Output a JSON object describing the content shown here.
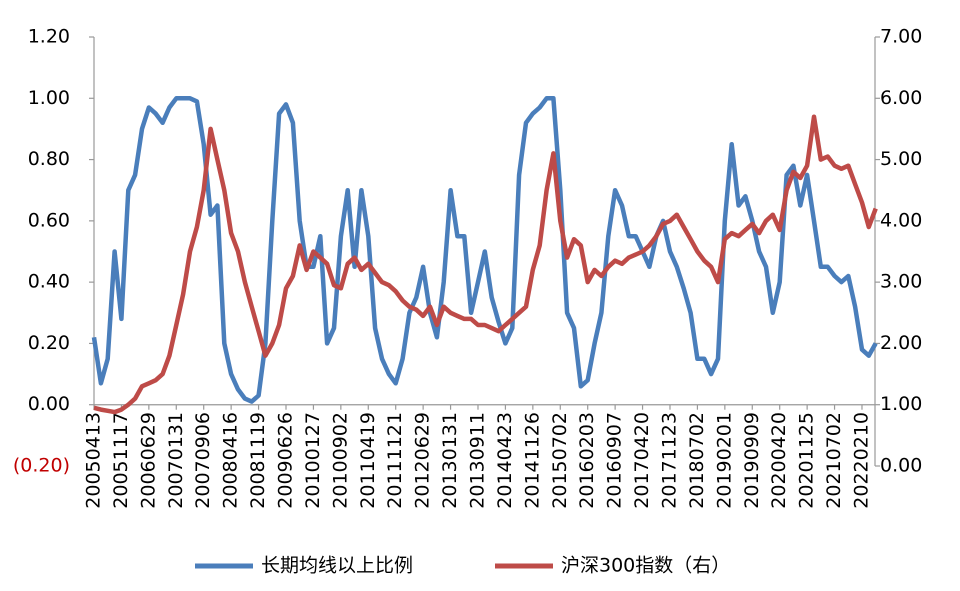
{
  "chart_data": {
    "type": "line",
    "categories": [
      "20050413",
      null,
      null,
      null,
      "20051117",
      null,
      null,
      null,
      "20060629",
      null,
      null,
      null,
      "20070131",
      null,
      null,
      null,
      "20070906",
      null,
      null,
      null,
      "20080416",
      null,
      null,
      null,
      "20081119",
      null,
      null,
      null,
      "20090626",
      null,
      null,
      null,
      "20100127",
      null,
      null,
      null,
      "20100902",
      null,
      null,
      null,
      "20110419",
      null,
      null,
      null,
      "20111121",
      null,
      null,
      null,
      "20120629",
      null,
      null,
      null,
      "20130131",
      null,
      null,
      null,
      "20130911",
      null,
      null,
      null,
      "20140423",
      null,
      null,
      null,
      "20141126",
      null,
      null,
      null,
      "20150702",
      null,
      null,
      null,
      "20160203",
      null,
      null,
      null,
      "20160907",
      null,
      null,
      null,
      "20170420",
      null,
      null,
      null,
      "20171123",
      null,
      null,
      null,
      "20180702",
      null,
      null,
      null,
      "20190201",
      null,
      null,
      null,
      "20190909",
      null,
      null,
      null,
      "20200420",
      null,
      null,
      null,
      "20201125",
      null,
      null,
      null,
      "20210702",
      null,
      null,
      null,
      "20220210",
      null,
      null
    ],
    "series": [
      {
        "name": "长期均线以上比例",
        "color": "#4a7ebb",
        "values": [
          0.22,
          0.07,
          0.15,
          0.5,
          0.28,
          0.7,
          0.75,
          0.9,
          0.97,
          0.95,
          0.92,
          0.97,
          1.0,
          1.0,
          1.0,
          0.99,
          0.85,
          0.62,
          0.65,
          0.2,
          0.1,
          0.05,
          0.02,
          0.01,
          0.03,
          0.2,
          0.6,
          0.95,
          0.98,
          0.92,
          0.6,
          0.45,
          0.45,
          0.55,
          0.2,
          0.25,
          0.55,
          0.7,
          0.45,
          0.7,
          0.55,
          0.25,
          0.15,
          0.1,
          0.07,
          0.15,
          0.3,
          0.35,
          0.45,
          0.3,
          0.22,
          0.4,
          0.7,
          0.55,
          0.55,
          0.3,
          0.4,
          0.5,
          0.35,
          0.27,
          0.2,
          0.25,
          0.75,
          0.92,
          0.95,
          0.97,
          1.0,
          1.0,
          0.7,
          0.3,
          0.25,
          0.06,
          0.08,
          0.2,
          0.3,
          0.55,
          0.7,
          0.65,
          0.55,
          0.55,
          0.5,
          0.45,
          0.55,
          0.6,
          0.5,
          0.45,
          0.38,
          0.3,
          0.15,
          0.15,
          0.1,
          0.15,
          0.6,
          0.85,
          0.65,
          0.68,
          0.6,
          0.5,
          0.45,
          0.3,
          0.4,
          0.75,
          0.78,
          0.65,
          0.75,
          0.6,
          0.45,
          0.45,
          0.42,
          0.4,
          0.42,
          0.32,
          0.18,
          0.16,
          0.2
        ]
      },
      {
        "name": "沪深300指数（右）",
        "color": "#be4b48",
        "axis": "y2",
        "values": [
          0.95,
          0.92,
          0.9,
          0.88,
          0.92,
          1.0,
          1.1,
          1.3,
          1.35,
          1.4,
          1.5,
          1.8,
          2.3,
          2.8,
          3.5,
          3.9,
          4.5,
          5.5,
          5.0,
          4.5,
          3.8,
          3.5,
          3.0,
          2.6,
          2.2,
          1.8,
          2.0,
          2.3,
          2.9,
          3.1,
          3.6,
          3.2,
          3.5,
          3.4,
          3.3,
          2.95,
          2.9,
          3.3,
          3.4,
          3.2,
          3.3,
          3.15,
          3.0,
          2.95,
          2.85,
          2.7,
          2.6,
          2.55,
          2.45,
          2.6,
          2.3,
          2.6,
          2.5,
          2.45,
          2.4,
          2.4,
          2.3,
          2.3,
          2.25,
          2.2,
          2.3,
          2.4,
          2.5,
          2.6,
          3.2,
          3.6,
          4.5,
          5.1,
          4.0,
          3.4,
          3.7,
          3.6,
          3.0,
          3.2,
          3.1,
          3.25,
          3.35,
          3.3,
          3.4,
          3.45,
          3.5,
          3.6,
          3.75,
          3.95,
          4.0,
          4.1,
          3.9,
          3.7,
          3.5,
          3.35,
          3.25,
          3.0,
          3.7,
          3.8,
          3.75,
          3.85,
          3.95,
          3.8,
          4.0,
          4.1,
          3.85,
          4.5,
          4.8,
          4.7,
          4.9,
          5.7,
          5.0,
          5.05,
          4.9,
          4.85,
          4.9,
          4.6,
          4.3,
          3.9,
          4.2
        ]
      }
    ],
    "ylim": [
      -0.2,
      1.2
    ],
    "yticks": [
      {
        "value": -0.2,
        "label": "(0.20)"
      },
      {
        "value": 0,
        "label": "0.00"
      },
      {
        "value": 0.2,
        "label": "0.20"
      },
      {
        "value": 0.4,
        "label": "0.40"
      },
      {
        "value": 0.6,
        "label": "0.60"
      },
      {
        "value": 0.8,
        "label": "0.80"
      },
      {
        "value": 1.0,
        "label": "1.00"
      },
      {
        "value": 1.2,
        "label": "1.20"
      }
    ],
    "negative_tick_color": "#c00000",
    "y2lim": [
      0,
      7
    ],
    "y2ticks": [
      {
        "value": 0,
        "label": "0.00"
      },
      {
        "value": 1,
        "label": "1.00"
      },
      {
        "value": 2,
        "label": "2.00"
      },
      {
        "value": 3,
        "label": "3.00"
      },
      {
        "value": 4,
        "label": "4.00"
      },
      {
        "value": 5,
        "label": "5.00"
      },
      {
        "value": 6,
        "label": "6.00"
      },
      {
        "value": 7,
        "label": "7.00"
      }
    ],
    "legend": "bottom"
  }
}
